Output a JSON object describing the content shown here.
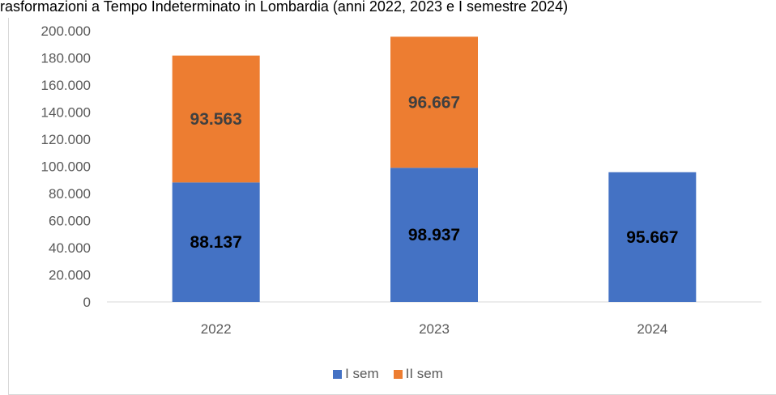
{
  "chart_data": {
    "type": "bar",
    "stacked": true,
    "title": "rasformazioni a Tempo Indeterminato in Lombardia (anni 2022, 2023 e I semestre 2024)",
    "categories": [
      "2022",
      "2023",
      "2024"
    ],
    "series": [
      {
        "name": "I sem",
        "color": "#4472C4",
        "values": [
          88137,
          98937,
          95667
        ],
        "labels": [
          "88.137",
          "98.937",
          "95.667"
        ]
      },
      {
        "name": "II sem",
        "color": "#ED7D31",
        "values": [
          93563,
          96667,
          null
        ],
        "labels": [
          "93.563",
          "96.667",
          ""
        ]
      }
    ],
    "ylim": [
      0,
      200000
    ],
    "yticks": [
      0,
      20000,
      40000,
      60000,
      80000,
      100000,
      120000,
      140000,
      160000,
      180000,
      200000
    ],
    "ytick_labels": [
      "0",
      "20.000",
      "40.000",
      "60.000",
      "80.000",
      "100.000",
      "120.000",
      "140.000",
      "160.000",
      "180.000",
      "200.000"
    ],
    "grid": false,
    "legend_position": "bottom"
  }
}
